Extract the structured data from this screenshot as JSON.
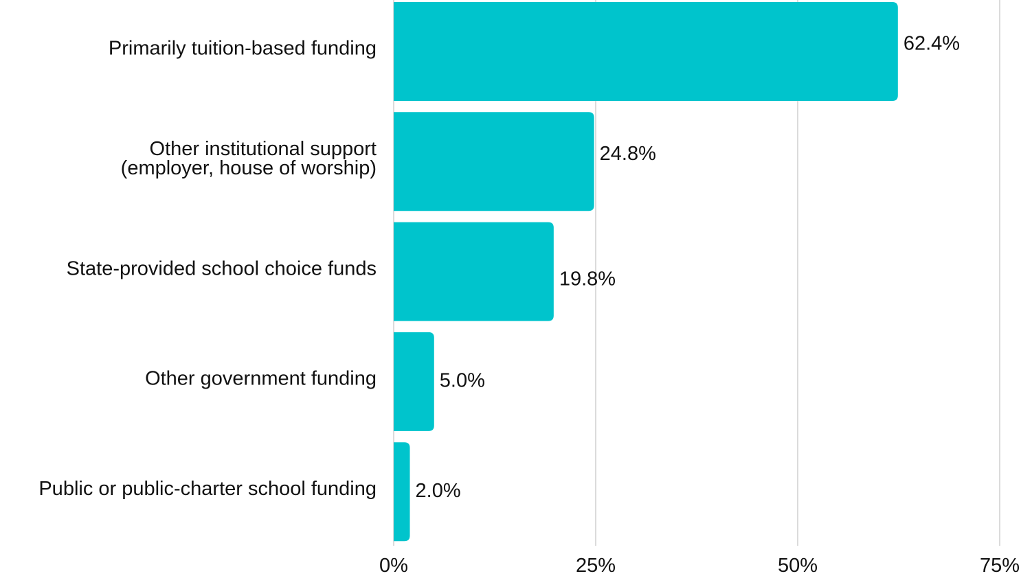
{
  "chart_data": {
    "type": "bar",
    "orientation": "horizontal",
    "categories": [
      [
        "Primarily tuition-based funding"
      ],
      [
        "Other institutional support ",
        "(employer, house of worship)"
      ],
      [
        "State-provided school choice funds"
      ],
      [
        "Other government funding"
      ],
      [
        "Public or public-charter school funding"
      ]
    ],
    "values": [
      62.4,
      24.8,
      19.8,
      5.0,
      2.0
    ],
    "value_labels": [
      "62.4%",
      "24.8%",
      "19.8%",
      "5.0%",
      "2.0%"
    ],
    "xlim": [
      0,
      75
    ],
    "xticks": [
      0,
      25,
      50,
      75
    ],
    "xtick_labels": [
      "0%",
      "25%",
      "50%",
      "75%"
    ],
    "grid": true,
    "bar_color": "#00C4CC",
    "title": "",
    "xlabel": "",
    "ylabel": ""
  }
}
